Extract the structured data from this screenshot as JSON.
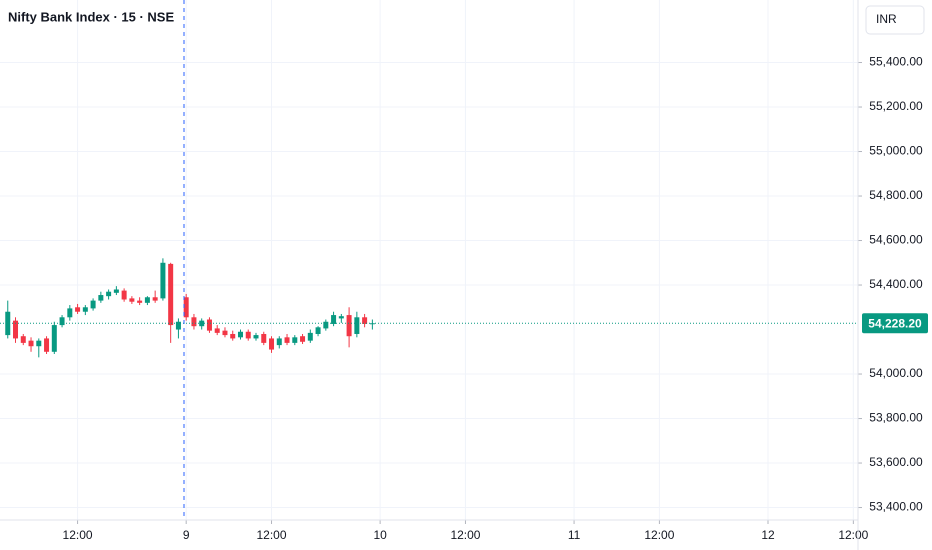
{
  "chart_data": {
    "type": "candlestick",
    "title": "Nifty Bank Index · 15 · NSE",
    "currency_button": "INR",
    "x": [
      -23,
      -22,
      -21,
      -20,
      -19,
      -18,
      -17,
      -16,
      -15,
      -14,
      -13,
      -12,
      -11,
      -10,
      -9,
      -8,
      -7,
      -6,
      -5,
      -4,
      -3,
      -2,
      -1,
      0,
      1,
      2,
      3,
      4,
      5,
      6,
      7,
      8,
      9,
      10,
      11,
      12,
      13,
      14,
      15,
      16,
      17,
      18,
      19,
      20,
      21,
      22,
      23,
      24
    ],
    "open": [
      54175,
      54240,
      54170,
      54150,
      54125,
      54160,
      54100,
      54220,
      54255,
      54300,
      54280,
      54295,
      54330,
      54350,
      54365,
      54375,
      54340,
      54330,
      54320,
      54345,
      54340,
      54495,
      54200,
      54345,
      54255,
      54215,
      54245,
      54205,
      54195,
      54180,
      54165,
      54190,
      54160,
      54180,
      54160,
      54130,
      54165,
      54140,
      54170,
      54150,
      54180,
      54205,
      54225,
      54250,
      54265,
      54180,
      54255,
      54225
    ],
    "high": [
      54330,
      54255,
      54180,
      54165,
      54160,
      54170,
      54235,
      54265,
      54310,
      54315,
      54310,
      54340,
      54370,
      54380,
      54395,
      54385,
      54350,
      54345,
      54350,
      54375,
      54520,
      54500,
      54250,
      54360,
      54270,
      54250,
      54255,
      54220,
      54210,
      54195,
      54200,
      54200,
      54185,
      54190,
      54170,
      54170,
      54180,
      54175,
      54180,
      54200,
      54215,
      54245,
      54280,
      54270,
      54300,
      54280,
      54270,
      54245
    ],
    "low": [
      54160,
      54140,
      54130,
      54100,
      54075,
      54090,
      54090,
      54210,
      54240,
      54270,
      54265,
      54285,
      54320,
      54335,
      54355,
      54325,
      54315,
      54310,
      54310,
      54320,
      54330,
      54140,
      54160,
      54240,
      54200,
      54200,
      54185,
      54175,
      54165,
      54150,
      54155,
      54150,
      54150,
      54130,
      54095,
      54115,
      54130,
      54130,
      54135,
      54140,
      54170,
      54195,
      54215,
      54230,
      54120,
      54165,
      54210,
      54200
    ],
    "close": [
      54280,
      54160,
      54140,
      54125,
      54150,
      54100,
      54220,
      54255,
      54295,
      54280,
      54300,
      54330,
      54355,
      54370,
      54380,
      54335,
      54325,
      54320,
      54345,
      54330,
      54500,
      54220,
      54235,
      54255,
      54215,
      54240,
      54195,
      54185,
      54175,
      54160,
      54190,
      54160,
      54175,
      54140,
      54110,
      54160,
      54140,
      54165,
      54145,
      54185,
      54210,
      54235,
      54265,
      54260,
      54170,
      54255,
      54225,
      54228.2
    ],
    "up_color": "#089981",
    "down_color": "#f23645",
    "xlim": [
      -24,
      86.6
    ],
    "xticks": [
      {
        "value": -14,
        "label": "12:00"
      },
      {
        "value": 0,
        "label": "9"
      },
      {
        "value": 11,
        "label": "12:00"
      },
      {
        "value": 25,
        "label": "10"
      },
      {
        "value": 36,
        "label": "12:00"
      },
      {
        "value": 50,
        "label": "11"
      },
      {
        "value": 61,
        "label": "12:00"
      },
      {
        "value": 75,
        "label": "12"
      },
      {
        "value": 86,
        "label": "12:00"
      }
    ],
    "ylim": [
      53344,
      55681
    ],
    "yticks": [
      {
        "value": 53400,
        "label": "53,400.00"
      },
      {
        "value": 53600,
        "label": "53,600.00"
      },
      {
        "value": 53800,
        "label": "53,800.00"
      },
      {
        "value": 54000,
        "label": "54,000.00"
      },
      {
        "value": 54400,
        "label": "54,400.00"
      },
      {
        "value": 54600,
        "label": "54,600.00"
      },
      {
        "value": 54800,
        "label": "54,800.00"
      },
      {
        "value": 55000,
        "label": "55,000.00"
      },
      {
        "value": 55200,
        "label": "55,200.00"
      },
      {
        "value": 55400,
        "label": "55,400.00"
      }
    ],
    "last_price": {
      "value": 54228.2,
      "label": "54,228.20"
    },
    "grid": true
  }
}
